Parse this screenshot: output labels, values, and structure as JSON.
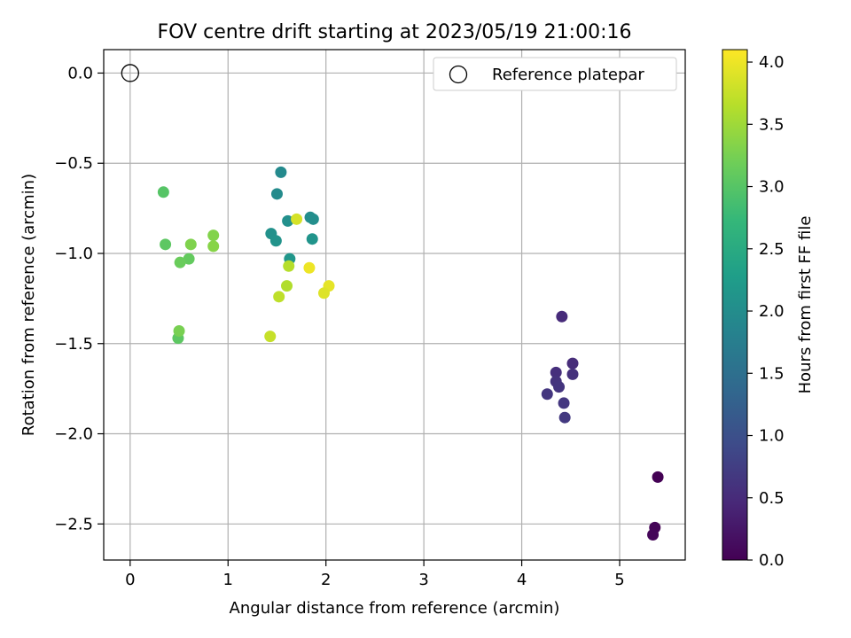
{
  "chart_data": {
    "type": "scatter",
    "title": "FOV centre drift starting at 2023/05/19 21:00:16",
    "xlabel": "Angular distance from reference (arcmin)",
    "ylabel": "Rotation from reference (arcmin)",
    "xlim": [
      -0.27,
      5.67
    ],
    "ylim": [
      -2.7,
      0.13
    ],
    "xticks": [
      0,
      1,
      2,
      3,
      4,
      5
    ],
    "yticks": [
      0.0,
      -0.5,
      -1.0,
      -1.5,
      -2.0,
      -2.5
    ],
    "xtick_labels": [
      "0",
      "1",
      "2",
      "3",
      "4",
      "5"
    ],
    "ytick_labels": [
      "0.0",
      "−0.5",
      "−1.0",
      "−1.5",
      "−2.0",
      "−2.5"
    ],
    "grid": true,
    "legend": {
      "placement": "top-right",
      "entries": [
        "Reference platepar"
      ]
    },
    "reference_point": {
      "x": 0,
      "y": 0,
      "label": "Reference platepar"
    },
    "colorbar": {
      "label": "Hours from first FF file",
      "min": 0.0,
      "max": 4.1,
      "ticks": [
        0.0,
        0.5,
        1.0,
        1.5,
        2.0,
        2.5,
        3.0,
        3.5,
        4.0
      ],
      "tick_labels": [
        "0.0",
        "0.5",
        "1.0",
        "1.5",
        "2.0",
        "2.5",
        "3.0",
        "3.5",
        "4.0"
      ],
      "colormap": "viridis",
      "stops": [
        "#440154",
        "#482878",
        "#3e4a89",
        "#31688e",
        "#26828e",
        "#1f9e89",
        "#35b779",
        "#6ece58",
        "#b5de2b",
        "#fde725"
      ]
    },
    "points": [
      {
        "x": 5.39,
        "y": -2.24,
        "c": 0.0
      },
      {
        "x": 5.36,
        "y": -2.52,
        "c": 0.03
      },
      {
        "x": 5.34,
        "y": -2.56,
        "c": 0.06
      },
      {
        "x": 4.41,
        "y": -1.35,
        "c": 0.5
      },
      {
        "x": 4.52,
        "y": -1.61,
        "c": 0.52
      },
      {
        "x": 4.35,
        "y": -1.66,
        "c": 0.55
      },
      {
        "x": 4.52,
        "y": -1.67,
        "c": 0.57
      },
      {
        "x": 4.35,
        "y": -1.71,
        "c": 0.6
      },
      {
        "x": 4.38,
        "y": -1.74,
        "c": 0.62
      },
      {
        "x": 4.26,
        "y": -1.78,
        "c": 0.64
      },
      {
        "x": 4.43,
        "y": -1.83,
        "c": 0.66
      },
      {
        "x": 4.44,
        "y": -1.91,
        "c": 0.68
      },
      {
        "x": 1.54,
        "y": -0.55,
        "c": 1.95
      },
      {
        "x": 1.5,
        "y": -0.67,
        "c": 1.97
      },
      {
        "x": 1.84,
        "y": -0.8,
        "c": 2.0
      },
      {
        "x": 1.87,
        "y": -0.81,
        "c": 2.02
      },
      {
        "x": 1.61,
        "y": -0.82,
        "c": 2.05
      },
      {
        "x": 1.44,
        "y": -0.89,
        "c": 2.07
      },
      {
        "x": 1.49,
        "y": -0.93,
        "c": 2.1
      },
      {
        "x": 1.86,
        "y": -0.92,
        "c": 2.12
      },
      {
        "x": 1.63,
        "y": -1.03,
        "c": 2.15
      },
      {
        "x": 0.34,
        "y": -0.66,
        "c": 3.0
      },
      {
        "x": 0.36,
        "y": -0.95,
        "c": 3.05
      },
      {
        "x": 0.6,
        "y": -1.03,
        "c": 3.1
      },
      {
        "x": 0.51,
        "y": -1.05,
        "c": 3.15
      },
      {
        "x": 0.49,
        "y": -1.47,
        "c": 3.05
      },
      {
        "x": 0.5,
        "y": -1.43,
        "c": 3.25
      },
      {
        "x": 0.62,
        "y": -0.95,
        "c": 3.3
      },
      {
        "x": 0.85,
        "y": -0.9,
        "c": 3.32
      },
      {
        "x": 0.85,
        "y": -0.96,
        "c": 3.35
      },
      {
        "x": 1.62,
        "y": -1.07,
        "c": 3.65
      },
      {
        "x": 1.6,
        "y": -1.18,
        "c": 3.62
      },
      {
        "x": 1.52,
        "y": -1.24,
        "c": 3.7
      },
      {
        "x": 1.43,
        "y": -1.46,
        "c": 3.75
      },
      {
        "x": 1.7,
        "y": -0.81,
        "c": 3.85
      },
      {
        "x": 1.83,
        "y": -1.08,
        "c": 4.0
      },
      {
        "x": 2.03,
        "y": -1.18,
        "c": 3.95
      },
      {
        "x": 1.98,
        "y": -1.22,
        "c": 3.9
      }
    ]
  }
}
